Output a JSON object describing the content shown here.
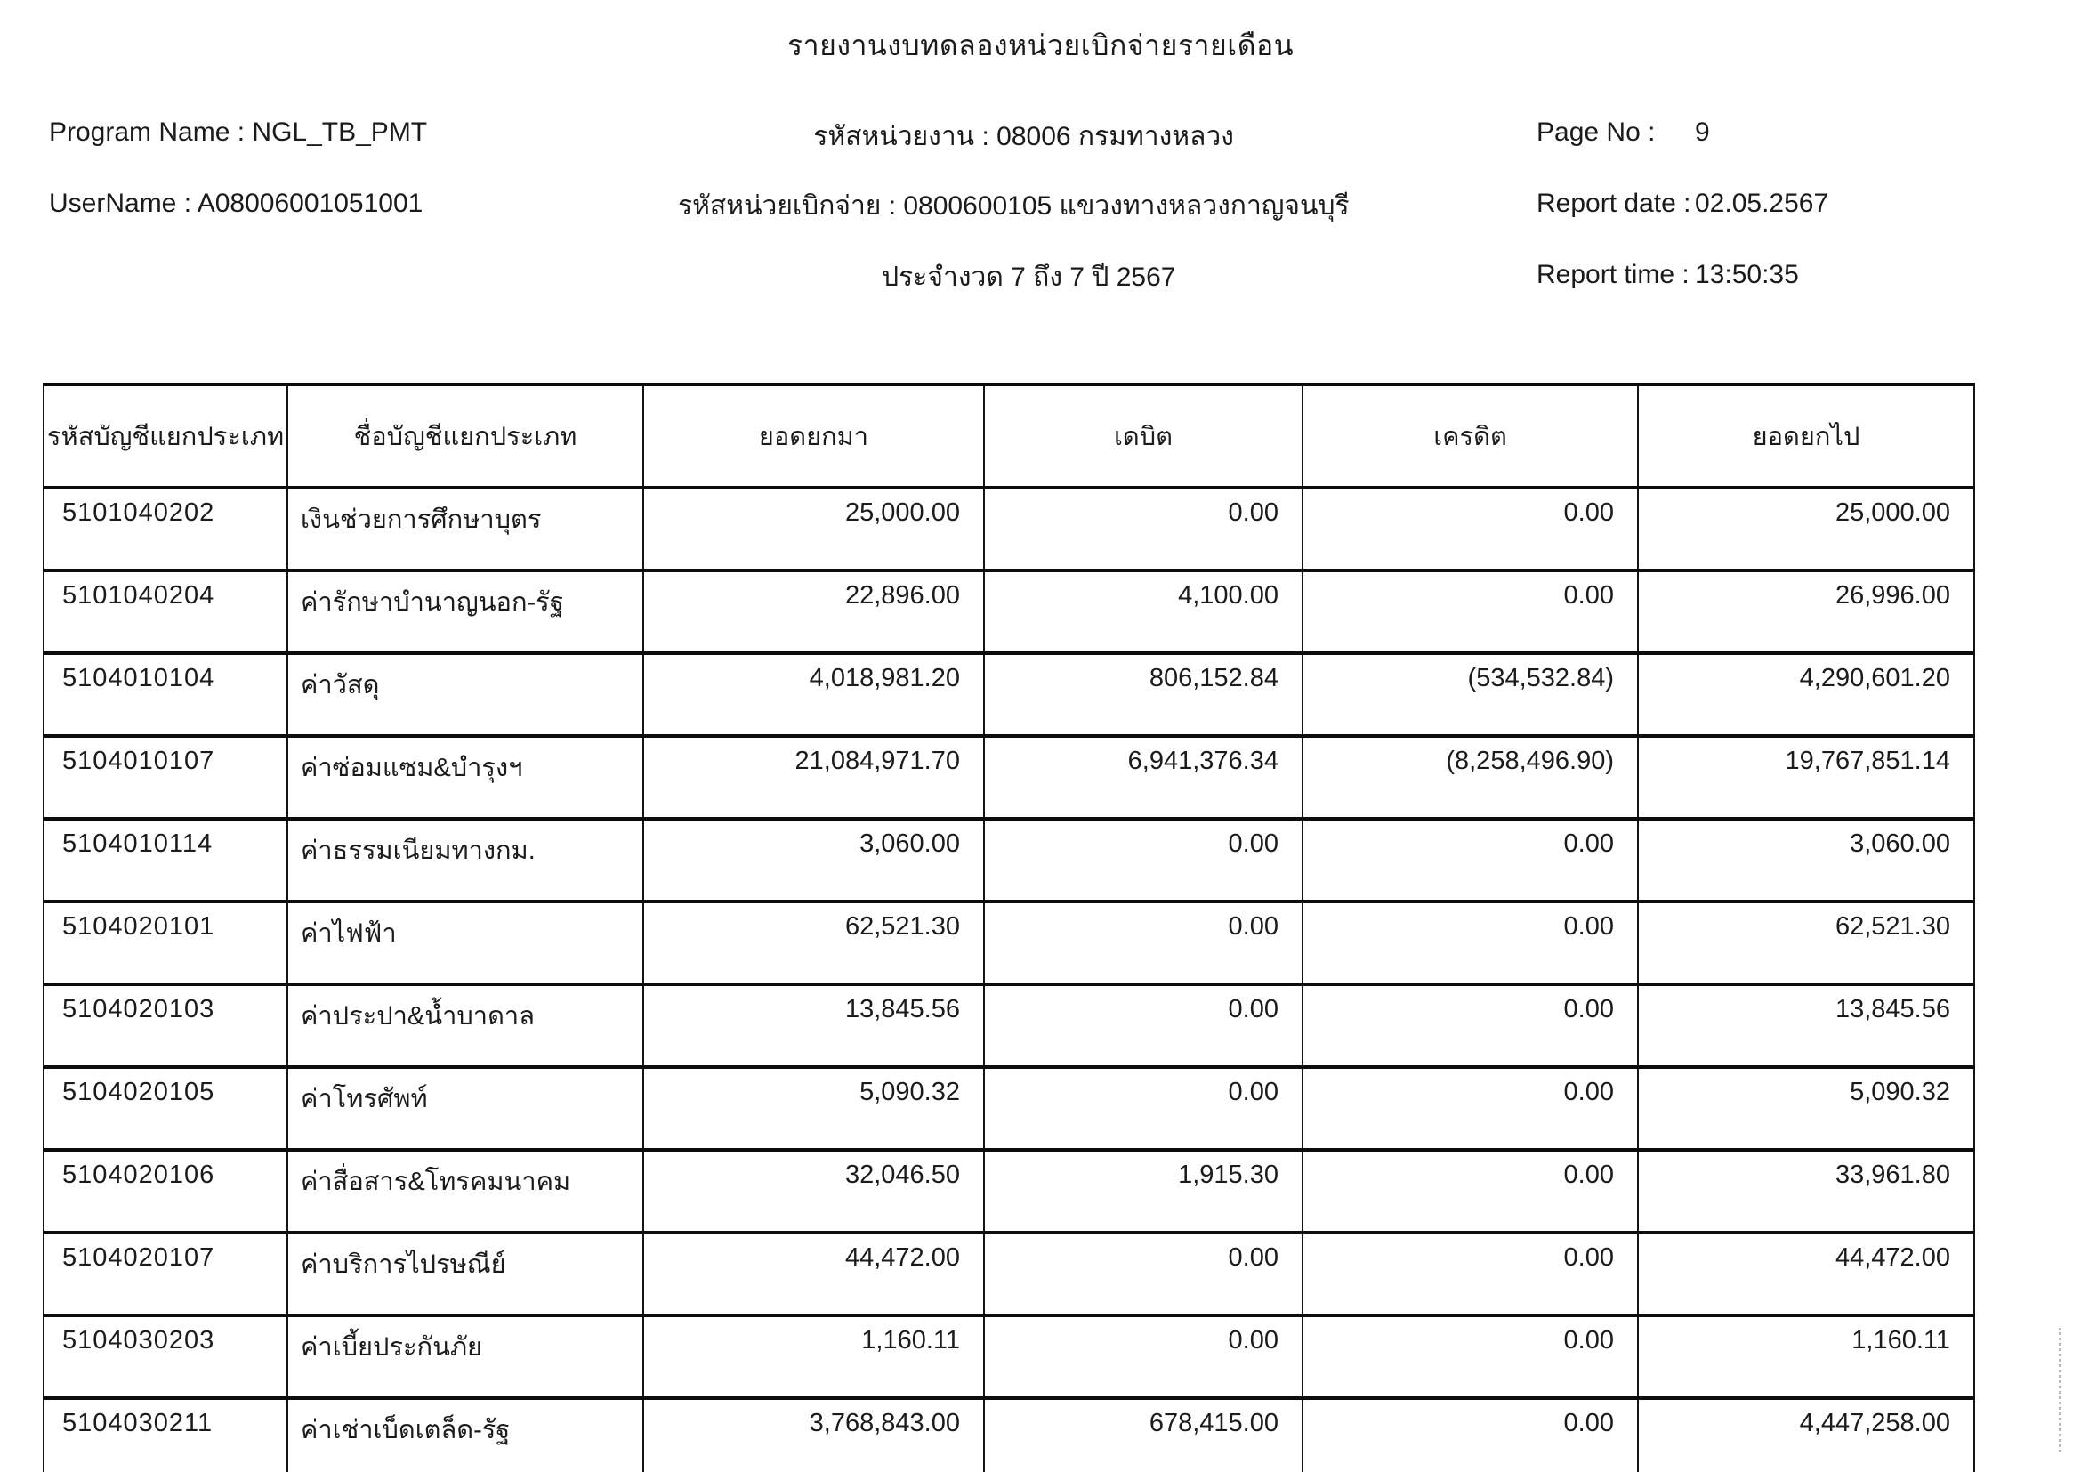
{
  "report": {
    "title": "รายงานงบทดลองหน่วยเบิกจ่ายรายเดือน",
    "program_name_label": "Program Name :",
    "program_name": "NGL_TB_PMT",
    "username_label": "UserName :",
    "username": "A08006001051001",
    "agency_line": "รหัสหน่วยงาน : 08006 กรมทางหลวง",
    "disbursement_line": "รหัสหน่วยเบิกจ่าย : 0800600105 แขวงทางหลวงกาญจนบุรี",
    "period_line": "ประจำงวด 7 ถึง 7 ปี 2567",
    "page_no_label": "Page No :",
    "page_no": "9",
    "report_date_label": "Report date :",
    "report_date": "02.05.2567",
    "report_time_label": "Report time :",
    "report_time": "13:50:35"
  },
  "table": {
    "columns": [
      "รหัสบัญชีแยกประเภท",
      "ชื่อบัญชีแยกประเภท",
      "ยอดยกมา",
      "เดบิต",
      "เครดิต",
      "ยอดยกไป"
    ],
    "rows": [
      [
        "5101040202",
        "เงินช่วยการศึกษาบุตร",
        "25,000.00",
        "0.00",
        "0.00",
        "25,000.00"
      ],
      [
        "5101040204",
        "ค่ารักษาบำนาญนอก-รัฐ",
        "22,896.00",
        "4,100.00",
        "0.00",
        "26,996.00"
      ],
      [
        "5104010104",
        "ค่าวัสดุ",
        "4,018,981.20",
        "806,152.84",
        "(534,532.84)",
        "4,290,601.20"
      ],
      [
        "5104010107",
        "ค่าซ่อมแซม&บำรุงฯ",
        "21,084,971.70",
        "6,941,376.34",
        "(8,258,496.90)",
        "19,767,851.14"
      ],
      [
        "5104010114",
        "ค่าธรรมเนียมทางกม.",
        "3,060.00",
        "0.00",
        "0.00",
        "3,060.00"
      ],
      [
        "5104020101",
        "ค่าไฟฟ้า",
        "62,521.30",
        "0.00",
        "0.00",
        "62,521.30"
      ],
      [
        "5104020103",
        "ค่าประปา&น้ำบาดาล",
        "13,845.56",
        "0.00",
        "0.00",
        "13,845.56"
      ],
      [
        "5104020105",
        "ค่าโทรศัพท์",
        "5,090.32",
        "0.00",
        "0.00",
        "5,090.32"
      ],
      [
        "5104020106",
        "ค่าสื่อสาร&โทรคมนาคม",
        "32,046.50",
        "1,915.30",
        "0.00",
        "33,961.80"
      ],
      [
        "5104020107",
        "ค่าบริการไปรษณีย์",
        "44,472.00",
        "0.00",
        "0.00",
        "44,472.00"
      ],
      [
        "5104030203",
        "ค่าเบี้ยประกันภัย",
        "1,160.11",
        "0.00",
        "0.00",
        "1,160.11"
      ],
      [
        "5104030211",
        "ค่าเช่าเบ็ดเตล็ด-รัฐ",
        "3,768,843.00",
        "678,415.00",
        "0.00",
        "4,447,258.00"
      ]
    ],
    "cell_names": [
      "account-code-cell",
      "account-name-cell",
      "beginning-balance-cell",
      "debit-cell",
      "credit-cell",
      "ending-balance-cell"
    ]
  }
}
